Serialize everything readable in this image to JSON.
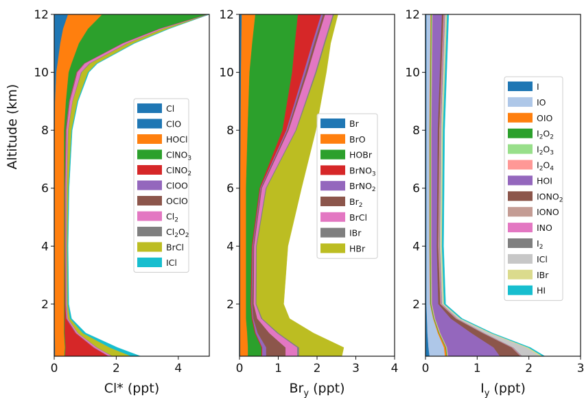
{
  "figure": {
    "ylabel": "Altitude (km)",
    "yticks": [
      2,
      4,
      6,
      8,
      10,
      12
    ],
    "ylim": [
      0.2,
      12
    ]
  },
  "chart_data": [
    {
      "type": "area",
      "stacked": true,
      "xlabel": "Cl* (ppt)",
      "xlim": [
        0,
        5
      ],
      "xticks": [
        0,
        2,
        4
      ],
      "legend": "center-right",
      "altitude": [
        0.2,
        0.5,
        1.0,
        1.5,
        2.0,
        4.0,
        6.0,
        8.0,
        9.0,
        10.0,
        10.3,
        11.0,
        11.5,
        12.0
      ],
      "series": [
        {
          "name": "Cl",
          "color": "#1f77b4",
          "values": [
            0.02,
            0.02,
            0.01,
            0.01,
            0.01,
            0.01,
            0.01,
            0.01,
            0.02,
            0.05,
            0.08,
            0.15,
            0.22,
            0.35
          ]
        },
        {
          "name": "ClO",
          "color": "#1f77b4",
          "values": [
            0.01,
            0.01,
            0.01,
            0.01,
            0.01,
            0.01,
            0.01,
            0.01,
            0.01,
            0.02,
            0.03,
            0.05,
            0.07,
            0.1
          ]
        },
        {
          "name": "HOCl",
          "color": "#ff7f0e",
          "values": [
            0.3,
            0.32,
            0.3,
            0.3,
            0.3,
            0.3,
            0.3,
            0.3,
            0.35,
            0.4,
            0.45,
            0.6,
            0.8,
            1.1
          ]
        },
        {
          "name": "ClNO3",
          "color": "#2ca02c",
          "values": [
            0.02,
            0.02,
            0.02,
            0.02,
            0.02,
            0.02,
            0.02,
            0.05,
            0.1,
            0.25,
            0.4,
            1.4,
            2.3,
            3.4
          ]
        },
        {
          "name": "ClNO2",
          "color": "#d62728",
          "values": [
            1.4,
            0.9,
            0.35,
            0.05,
            0.02,
            0.01,
            0.01,
            0.01,
            0.01,
            0.01,
            0.01,
            0.01,
            0.01,
            0.01
          ]
        },
        {
          "name": "ClOO",
          "color": "#9467bd",
          "values": [
            0.01,
            0.01,
            0.01,
            0.01,
            0.01,
            0.01,
            0.01,
            0.01,
            0.01,
            0.01,
            0.01,
            0.01,
            0.01,
            0.01
          ]
        },
        {
          "name": "OClO",
          "color": "#8c564b",
          "values": [
            0.01,
            0.01,
            0.01,
            0.01,
            0.01,
            0.01,
            0.01,
            0.01,
            0.01,
            0.01,
            0.01,
            0.01,
            0.01,
            0.01
          ]
        },
        {
          "name": "Cl2",
          "color": "#e377c2",
          "values": [
            0.1,
            0.08,
            0.05,
            0.03,
            0.02,
            0.02,
            0.03,
            0.05,
            0.08,
            0.12,
            0.14,
            0.12,
            0.08,
            0.04
          ]
        },
        {
          "name": "Cl2O2",
          "color": "#7f7f7f",
          "values": [
            0.02,
            0.02,
            0.01,
            0.01,
            0.01,
            0.01,
            0.01,
            0.01,
            0.01,
            0.02,
            0.03,
            0.03,
            0.02,
            0.02
          ]
        },
        {
          "name": "BrCl",
          "color": "#bcbd22",
          "values": [
            0.6,
            0.4,
            0.15,
            0.06,
            0.03,
            0.03,
            0.05,
            0.1,
            0.15,
            0.2,
            0.2,
            0.18,
            0.15,
            0.08
          ]
        },
        {
          "name": "ICl",
          "color": "#17becf",
          "values": [
            0.3,
            0.25,
            0.1,
            0.05,
            0.03,
            0.02,
            0.02,
            0.02,
            0.02,
            0.03,
            0.03,
            0.03,
            0.03,
            0.03
          ]
        }
      ]
    },
    {
      "type": "area",
      "stacked": true,
      "xlabel": "Br",
      "xlabel_sub": "y",
      "xlabel_suffix": " (ppt)",
      "xlim": [
        0,
        4
      ],
      "xticks": [
        0,
        1,
        2,
        3,
        4
      ],
      "legend": "center-right",
      "altitude": [
        0.2,
        0.5,
        1.0,
        1.5,
        2.0,
        4.0,
        6.0,
        8.0,
        10.0,
        11.0,
        12.0
      ],
      "series": [
        {
          "name": "Br",
          "color": "#1f77b4",
          "values": [
            0.02,
            0.02,
            0.02,
            0.02,
            0.02,
            0.02,
            0.02,
            0.03,
            0.04,
            0.05,
            0.06
          ]
        },
        {
          "name": "BrO",
          "color": "#ff7f0e",
          "values": [
            0.2,
            0.2,
            0.18,
            0.15,
            0.15,
            0.15,
            0.15,
            0.18,
            0.22,
            0.28,
            0.35
          ]
        },
        {
          "name": "HOBr",
          "color": "#2ca02c",
          "values": [
            0.35,
            0.35,
            0.2,
            0.15,
            0.12,
            0.15,
            0.35,
            0.9,
            1.1,
            1.1,
            1.1
          ]
        },
        {
          "name": "BrNO3",
          "color": "#d62728",
          "values": [
            0.02,
            0.02,
            0.02,
            0.02,
            0.02,
            0.02,
            0.02,
            0.1,
            0.3,
            0.45,
            0.6
          ]
        },
        {
          "name": "BrNO2",
          "color": "#9467bd",
          "values": [
            0.1,
            0.1,
            0.05,
            0.02,
            0.02,
            0.02,
            0.02,
            0.03,
            0.05,
            0.05,
            0.05
          ]
        },
        {
          "name": "Br2",
          "color": "#8c564b",
          "values": [
            0.5,
            0.5,
            0.3,
            0.1,
            0.04,
            0.02,
            0.02,
            0.03,
            0.05,
            0.05,
            0.05
          ]
        },
        {
          "name": "BrCl",
          "color": "#e377c2",
          "values": [
            0.3,
            0.3,
            0.2,
            0.1,
            0.05,
            0.05,
            0.1,
            0.18,
            0.2,
            0.2,
            0.2
          ]
        },
        {
          "name": "IBr",
          "color": "#7f7f7f",
          "values": [
            0.05,
            0.05,
            0.04,
            0.03,
            0.02,
            0.02,
            0.02,
            0.02,
            0.03,
            0.03,
            0.03
          ]
        },
        {
          "name": "HBr",
          "color": "#bcbd22",
          "values": [
            1.1,
            1.15,
            0.9,
            0.7,
            0.7,
            0.8,
            0.9,
            0.5,
            0.25,
            0.14,
            0.1
          ]
        }
      ]
    },
    {
      "type": "area",
      "stacked": true,
      "xlabel": "I",
      "xlabel_sub": "y",
      "xlabel_suffix": " (ppt)",
      "xlim": [
        0,
        3
      ],
      "xticks": [
        0,
        1,
        2,
        3
      ],
      "legend": "center-right",
      "altitude": [
        0.2,
        0.5,
        1.0,
        1.5,
        2.0,
        4.0,
        8.0,
        12.0
      ],
      "series": [
        {
          "name": "I",
          "color": "#1f77b4",
          "values": [
            0.08,
            0.06,
            0.04,
            0.03,
            0.02,
            0.02,
            0.02,
            0.02
          ]
        },
        {
          "name": "IO",
          "color": "#aec7e8",
          "values": [
            0.3,
            0.3,
            0.2,
            0.12,
            0.07,
            0.06,
            0.06,
            0.08
          ]
        },
        {
          "name": "OIO",
          "color": "#ff7f0e",
          "values": [
            0.03,
            0.03,
            0.02,
            0.01,
            0.01,
            0.01,
            0.01,
            0.01
          ]
        },
        {
          "name": "I2O2",
          "color": "#2ca02c",
          "values": [
            0.01,
            0.01,
            0.01,
            0.01,
            0.01,
            0.01,
            0.01,
            0.01
          ]
        },
        {
          "name": "I2O3",
          "color": "#98df8a",
          "values": [
            0.01,
            0.01,
            0.01,
            0.01,
            0.01,
            0.01,
            0.01,
            0.01
          ]
        },
        {
          "name": "I2O4",
          "color": "#ff9896",
          "values": [
            0.01,
            0.01,
            0.01,
            0.01,
            0.01,
            0.01,
            0.01,
            0.01
          ]
        },
        {
          "name": "HOI",
          "color": "#9467bd",
          "values": [
            1.0,
            0.9,
            0.6,
            0.3,
            0.12,
            0.1,
            0.12,
            0.18
          ]
        },
        {
          "name": "IONO2",
          "color": "#8c564b",
          "values": [
            0.4,
            0.35,
            0.22,
            0.1,
            0.04,
            0.03,
            0.03,
            0.03
          ]
        },
        {
          "name": "IONO",
          "color": "#c49c94",
          "values": [
            0.01,
            0.01,
            0.01,
            0.01,
            0.01,
            0.01,
            0.01,
            0.01
          ]
        },
        {
          "name": "INO",
          "color": "#e377c2",
          "values": [
            0.01,
            0.01,
            0.01,
            0.01,
            0.01,
            0.01,
            0.01,
            0.01
          ]
        },
        {
          "name": "I2",
          "color": "#7f7f7f",
          "values": [
            0.01,
            0.01,
            0.01,
            0.01,
            0.01,
            0.01,
            0.01,
            0.01
          ]
        },
        {
          "name": "ICl",
          "color": "#c7c7c7",
          "values": [
            0.35,
            0.25,
            0.1,
            0.04,
            0.02,
            0.02,
            0.02,
            0.02
          ]
        },
        {
          "name": "IBr",
          "color": "#dbdb8d",
          "values": [
            0.05,
            0.04,
            0.03,
            0.02,
            0.02,
            0.02,
            0.02,
            0.02
          ]
        },
        {
          "name": "HI",
          "color": "#17becf",
          "values": [
            0.04,
            0.04,
            0.03,
            0.03,
            0.03,
            0.03,
            0.03,
            0.03
          ]
        }
      ]
    }
  ]
}
